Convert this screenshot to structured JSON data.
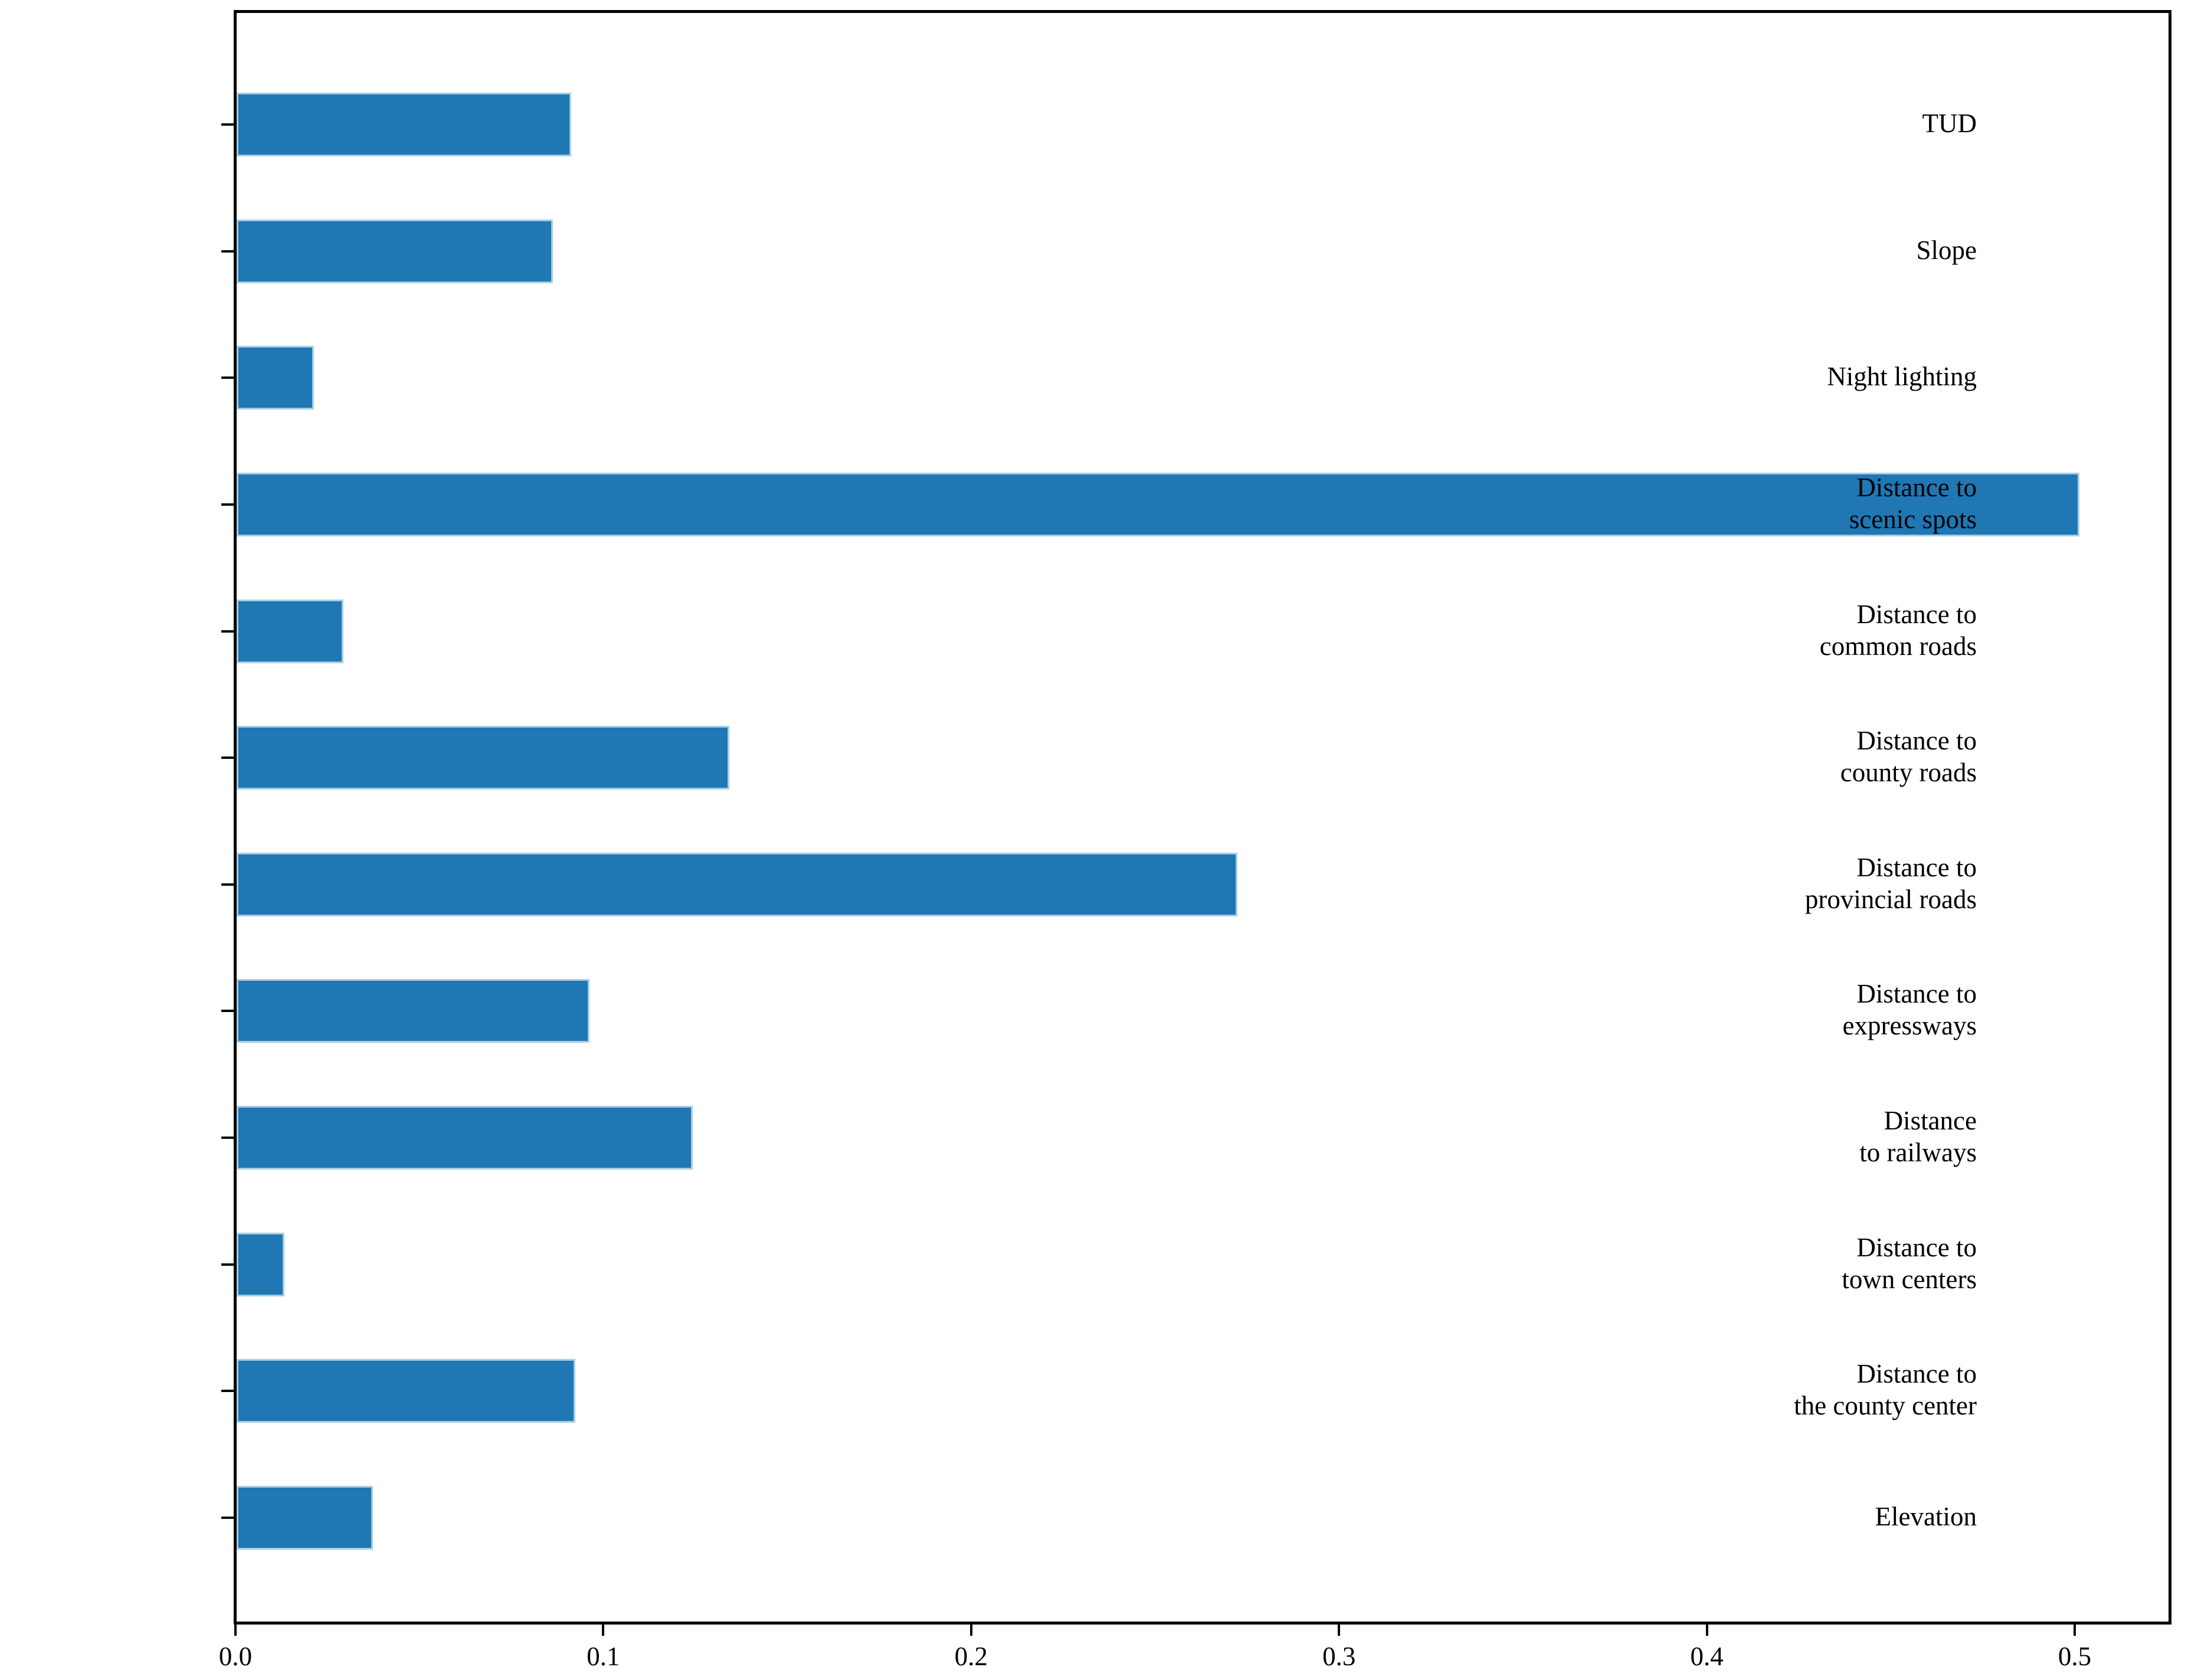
{
  "chart_data": {
    "type": "bar",
    "orientation": "horizontal",
    "title": "",
    "xlabel": "",
    "ylabel": "",
    "grid": false,
    "legend_position": "none",
    "xlim": [
      0.0,
      0.526
    ],
    "x_ticks": [
      0.0,
      0.1,
      0.2,
      0.3,
      0.4,
      0.5
    ],
    "x_tick_labels": [
      "0.0",
      "0.1",
      "0.2",
      "0.3",
      "0.4",
      "0.5"
    ],
    "categories": [
      "TUD",
      "Slope",
      "Night lighting",
      "Distance to scenic spots",
      "Distance to common roads",
      "Distance to county roads",
      "Distance to provincial roads",
      "Distance to expressways",
      "Distance to railways",
      "Distance to town centers",
      "Distance to the county center",
      "Elevation"
    ],
    "category_label_lines": [
      [
        "TUD"
      ],
      [
        "Slope"
      ],
      [
        "Night lighting"
      ],
      [
        "Distance to",
        "scenic spots"
      ],
      [
        "Distance to",
        "common roads"
      ],
      [
        "Distance to",
        "county roads"
      ],
      [
        "Distance to",
        "provincial roads"
      ],
      [
        "Distance to",
        "expressways"
      ],
      [
        "Distance",
        "to railways"
      ],
      [
        "Distance to",
        "town centers"
      ],
      [
        "Distance to",
        "the county center"
      ],
      [
        "Elevation"
      ]
    ],
    "values": [
      0.091,
      0.086,
      0.021,
      0.501,
      0.029,
      0.134,
      0.272,
      0.096,
      0.124,
      0.013,
      0.092,
      0.037
    ],
    "bar_color": "#1f77b4",
    "bar_edge_color": "#a6cee3",
    "axis_color": "#000000",
    "text_color": "#000000"
  }
}
